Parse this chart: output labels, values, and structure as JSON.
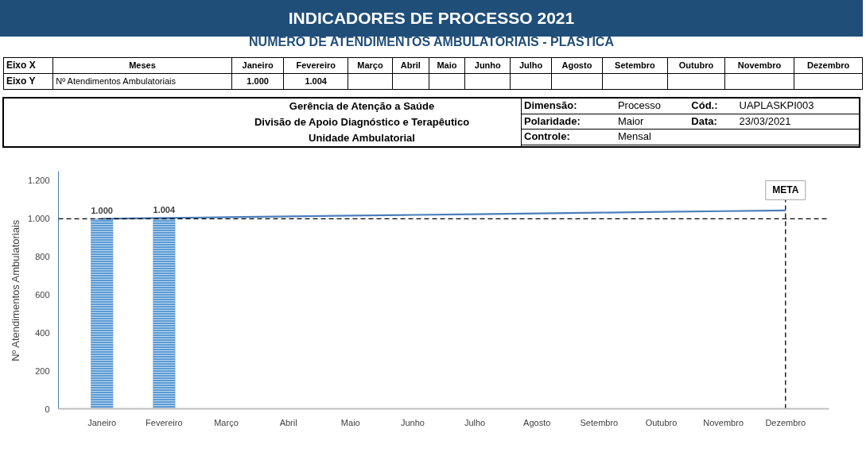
{
  "chart_data": {
    "type": "bar",
    "title": "INDICADORES DE PROCESSO 2021",
    "subtitle": "NÚMERO DE ATENDIMENTOS AMBULATORIAIS -  PLÁSTICA",
    "ylabel": "Nº Atendimentos Ambulatoriais",
    "categories": [
      "Janeiro",
      "Fevereiro",
      "Março",
      "Abril",
      "Maio",
      "Junho",
      "Julho",
      "Agosto",
      "Setembro",
      "Outubro",
      "Novembro",
      "Dezembro"
    ],
    "series": [
      {
        "color": "#5b9bd5",
        "values": [
          1000,
          1004,
          null,
          null,
          null,
          null,
          null,
          null,
          null,
          null,
          null,
          null
        ],
        "value_labels": [
          "1.000",
          "1.004",
          null,
          null,
          null,
          null,
          null,
          null,
          null,
          null,
          null,
          null
        ]
      },
      {
        "type": "line",
        "color": "#4a7ebb",
        "values": [
          1000,
          1004,
          1008,
          1012,
          1016,
          1020,
          1024,
          1028,
          1032,
          1036,
          1040,
          1044
        ]
      }
    ],
    "ylim": [
      0,
      1250
    ],
    "yticks": [
      0,
      200,
      400,
      600,
      800,
      {
        "value": 1000,
        "label": "1.000"
      },
      {
        "value": 1200,
        "label": "1.200"
      }
    ],
    "ref_lines": [
      {
        "axis": "y",
        "value": 1000,
        "label": "META",
        "color": "#000000",
        "line_style": "dashed"
      }
    ],
    "annotations": [
      "Eixo X",
      "Meses",
      "Eixo Y",
      "Nº Atendimentos Ambulatoriais",
      "Gerência de Atenção a Saúde",
      "Divisão de Apoio Diagnóstico e Terapêutico",
      "Unidade Ambulatorial",
      "Dimensão:",
      "Processo",
      "Cód.:",
      "UAPLASKPI003",
      "Polaridade:",
      "Maior",
      "Data:",
      "23/03/2021",
      "Controle:",
      "Mensal"
    ]
  }
}
